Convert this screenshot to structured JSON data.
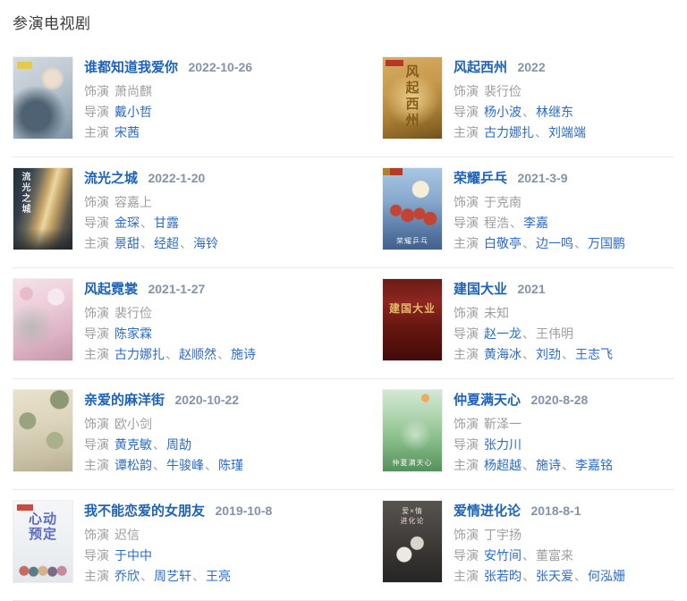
{
  "page": {
    "section_title": "参演电视剧"
  },
  "labels": {
    "role": "饰演",
    "director": "导演",
    "starring": "主演",
    "separator": "、"
  },
  "colors": {
    "title_blue": "#1e62b8",
    "link_blue": "#2b6cc4",
    "date_gray": "#8494a8",
    "text_gray": "#9e9e9e",
    "header_dark": "#3c3c3c",
    "divider": "#e9e9e9"
  },
  "entries": [
    {
      "title": "谁都知道我爱你",
      "date": "2022-10-26",
      "role": "萧尚麒",
      "directors": [
        {
          "name": "戴小哲",
          "link": true
        }
      ],
      "starring": [
        {
          "name": "宋茜",
          "link": true
        }
      ],
      "poster": {
        "caption": "",
        "caption_class": "cap-none",
        "css": "linear-gradient(#e6c94f,#e6c94f) 4px 5px/17px 8px no-repeat, radial-gradient(circle at 66% 26%, #ecdfd2 8px, #d9cfc4 12px, rgba(0,0,0,0) 13px), radial-gradient(circle at 38% 72%, #4f6273 16px, rgba(0,0,0,0) 34px), linear-gradient(150deg, #d3dbe2 0%, #bec9d3 40%, #9db0be 72%, #7f93a4 100%)"
      }
    },
    {
      "title": "风起西州",
      "date": "2022",
      "role": "裴行俭",
      "directors": [
        {
          "name": "杨小波",
          "link": true
        },
        {
          "name": "林继东",
          "link": true
        }
      ],
      "starring": [
        {
          "name": "古力娜扎",
          "link": true
        },
        {
          "name": "刘端端",
          "link": true
        }
      ],
      "poster": {
        "caption": "风起西州",
        "caption_class": "cap-gold-vert",
        "css": "linear-gradient(#b8372a,#b8372a) 3px 3px/20px 7px no-repeat, radial-gradient(circle at 50% 52%, rgba(240,214,150,.9) 0px, rgba(240,214,150,0) 30px), linear-gradient(165deg, #d6ad64 0%, #c79a4c 38%, #b08438 62%, #876325 88%, #6f4f1c 100%)"
      }
    },
    {
      "title": "流光之城",
      "date": "2022-1-20",
      "role": "容嘉上",
      "directors": [
        {
          "name": "金琛",
          "link": true
        },
        {
          "name": "甘露",
          "link": true
        }
      ],
      "starring": [
        {
          "name": "景甜",
          "link": true
        },
        {
          "name": "经超",
          "link": true
        },
        {
          "name": "海铃",
          "link": true
        }
      ],
      "poster": {
        "caption": "流光之城",
        "caption_class": "cap-white-vert",
        "css": "linear-gradient(0deg, rgba(30,36,42,.85) 0%, rgba(30,36,42,0) 26%), linear-gradient(105deg, #242f38 0%, #33404c 22%, #6d6a5e 36%, #c5a266 48%, #ecd6a2 56%, #c2a166 66%, #5d564a 82%, #2c3138 100%)"
      }
    },
    {
      "title": "荣耀乒乓",
      "date": "2021-3-9",
      "role": "于克南",
      "directors": [
        {
          "name": "程浩",
          "link": false
        },
        {
          "name": "李嘉",
          "link": true
        }
      ],
      "starring": [
        {
          "name": "白敬亭",
          "link": true
        },
        {
          "name": "边一鸣",
          "link": true
        },
        {
          "name": "万国鹏",
          "link": true
        }
      ],
      "poster": {
        "caption": "荣耀乒乓",
        "caption_class": "cap-white-bottom",
        "css": "linear-gradient(90deg,#b08028 0 8px,#b8372a 8px 22px,rgba(0,0,0,0) 22px) 0 0/100% 8px no-repeat, radial-gradient(circle at 64% 26%, #f6eed8 9px, rgba(246,238,216,0) 10px), radial-gradient(circle at 22% 52%, #c44434 6px, rgba(0,0,0,0) 7px), radial-gradient(circle at 42% 58%, #c44434 7px, rgba(0,0,0,0) 8px), radial-gradient(circle at 62% 56%, #c44434 6px, rgba(0,0,0,0) 7px), radial-gradient(circle at 80% 62%, #c44434 7px, rgba(0,0,0,0) 8px), linear-gradient(180deg, #a9c6e3 0%, #87a9cd 40%, #5a7ca7 75%, #41608a 100%)"
      }
    },
    {
      "title": "风起霓裳",
      "date": "2021-1-27",
      "role": "裴行俭",
      "directors": [
        {
          "name": "陈家霖",
          "link": true
        }
      ],
      "starring": [
        {
          "name": "古力娜扎",
          "link": true
        },
        {
          "name": "赵顺然",
          "link": true
        },
        {
          "name": "施诗",
          "link": true
        }
      ],
      "poster": {
        "caption": "",
        "caption_class": "cap-none",
        "css": "radial-gradient(circle at 72% 22%, #f7e7ee 9px, rgba(0,0,0,0) 10px), radial-gradient(circle at 30% 58%, rgba(150,180,165,.55) 0, rgba(150,180,165,0) 26px), radial-gradient(circle at 22% 18%, #e9bccb 7px, rgba(0,0,0,0) 8px), linear-gradient(160deg, #f4e2e8 0%, #eccdd9 38%, #ddb3c5 68%, #c795ab 100%)"
      }
    },
    {
      "title": "建国大业",
      "date": "2021",
      "role": "未知",
      "directors": [
        {
          "name": "赵一龙",
          "link": true
        },
        {
          "name": "王伟明",
          "link": false
        }
      ],
      "starring": [
        {
          "name": "黄海冰",
          "link": true
        },
        {
          "name": "刘劲",
          "link": true
        },
        {
          "name": "王志飞",
          "link": true
        }
      ],
      "poster": {
        "caption": "建国大业",
        "caption_class": "cap-gold-center",
        "css": "linear-gradient(180deg, #6d1b16 0%, #8c2620 28%, #64150f 62%, #420b08 100%)"
      }
    },
    {
      "title": "亲爱的麻洋街",
      "date": "2020-10-22",
      "role": "欧小剑",
      "directors": [
        {
          "name": "黄克敏",
          "link": true
        },
        {
          "name": "周劼",
          "link": true
        }
      ],
      "starring": [
        {
          "name": "谭松韵",
          "link": true
        },
        {
          "name": "牛骏峰",
          "link": true
        },
        {
          "name": "陈瑾",
          "link": true
        }
      ],
      "poster": {
        "caption": "",
        "caption_class": "cap-none",
        "css": "radial-gradient(circle at 78% 12%, #8c9873 10px, rgba(0,0,0,0) 11px), radial-gradient(circle at 24% 38%, #9aa37f 9px, rgba(0,0,0,0) 10px), radial-gradient(circle at 70% 62%, #aab08c 9px, rgba(0,0,0,0) 10px), linear-gradient(170deg, #eae1cc 0%, #dcd4bc 42%, #cbc3a8 74%, #b7ae92 100%)"
      }
    },
    {
      "title": "仲夏满天心",
      "date": "2020-8-28",
      "role": "靳泽一",
      "directors": [
        {
          "name": "张力川",
          "link": true
        }
      ],
      "starring": [
        {
          "name": "杨超越",
          "link": true
        },
        {
          "name": "施诗",
          "link": true
        },
        {
          "name": "李嘉铭",
          "link": true
        }
      ],
      "poster": {
        "caption": "仲夏满天心",
        "caption_class": "cap-white-bottom",
        "css": "radial-gradient(circle at 72% 10%, #f0a85a 4px, rgba(0,0,0,0) 5px), radial-gradient(circle at 55% 55%, rgba(255,255,255,.5) 0, rgba(255,255,255,0) 18px), linear-gradient(180deg, #d3e8d6 0%, #abd3ab 35%, #7fb681 68%, #55905b 100%)"
      }
    },
    {
      "title": "我不能恋爱的女朋友",
      "date": "2019-10-8",
      "role": "迟信",
      "directors": [
        {
          "name": "于中中",
          "link": true
        }
      ],
      "starring": [
        {
          "name": "乔欣",
          "link": true
        },
        {
          "name": "周艺轩",
          "link": true
        },
        {
          "name": "王亮",
          "link": true
        }
      ],
      "poster": {
        "caption": "心动预定",
        "caption_class": "cap-blue-big",
        "css": "linear-gradient(#c94a3e,#c94a3e) 4px 4px/18px 7px no-repeat, radial-gradient(circle at 18% 86%, #c86a5e 5px, rgba(0,0,0,0) 6px), radial-gradient(circle at 34% 87%, #5a7d8c 5px, rgba(0,0,0,0) 6px), radial-gradient(circle at 50% 86%, #d8b08a 5px, rgba(0,0,0,0) 6px), radial-gradient(circle at 66% 87%, #7a6a88 5px, rgba(0,0,0,0) 6px), radial-gradient(circle at 82% 86%, #c88a9a 5px, rgba(0,0,0,0) 6px), linear-gradient(180deg, #f5f6f8 0%, #edf0f3 55%, #e3e7eb 100%)"
      }
    },
    {
      "title": "爱情进化论",
      "date": "2018-8-1",
      "role": "丁宇扬",
      "directors": [
        {
          "name": "安竹间",
          "link": true
        },
        {
          "name": "董富来",
          "link": false
        }
      ],
      "starring": [
        {
          "name": "张若昀",
          "link": true
        },
        {
          "name": "张天爱",
          "link": true
        },
        {
          "name": "何泓姗",
          "link": true
        }
      ],
      "poster": {
        "caption": "爱×情\n进化论",
        "caption_class": "cap-pale-top",
        "css": "radial-gradient(circle at 36% 66%, #ece9e3 8px, rgba(0,0,0,0) 9px), radial-gradient(circle at 58% 52%, #d9d4cc 7px, rgba(0,0,0,0) 8px), linear-gradient(180deg, #585450 0%, #45413e 38%, #32302d 75%, #272523 100%)"
      }
    }
  ]
}
